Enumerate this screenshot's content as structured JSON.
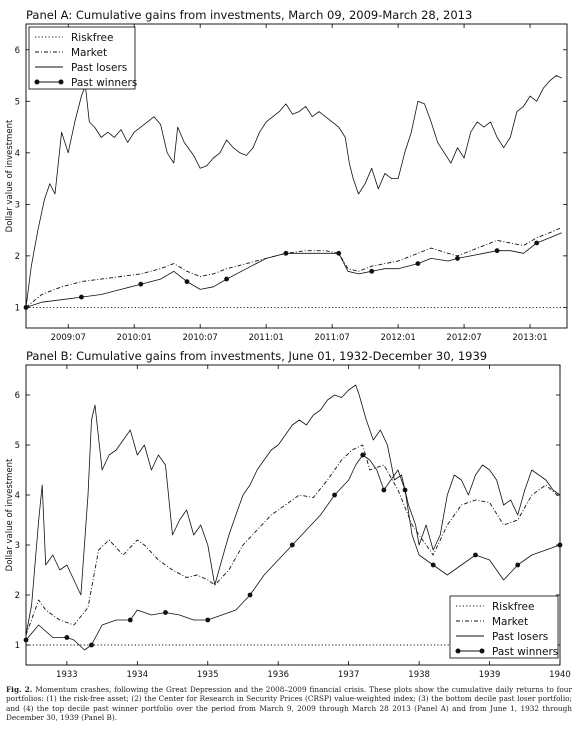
{
  "figure_caption": {
    "label": "Fig. 2.",
    "text": "Momentum crashes, following the Great Depression and the 2008–2009 financial crisis. These plots show the cumulative daily returns to four portfolios: (1) the risk-free asset; (2) the Center for Research in Security Prices (CRSP) value-weighted index; (3) the bottom decile past loser portfolio; and (4) the top decile past winner portfolio over the period from March 9, 2009 through March 28 2013 (Panel A) and from June 1, 1932 through December 30, 1939 (Panel B)."
  },
  "chart_data": [
    {
      "panel": "A",
      "type": "line",
      "title": "Panel A: Cumulative gains from investments, March 09, 2009-March 28, 2013",
      "ylabel": "Dollar value of investment",
      "xlabel": "",
      "xlim": [
        2009.18,
        2013.28
      ],
      "ylim": [
        0.6,
        6.5
      ],
      "yticks": [
        1,
        2,
        3,
        4,
        5,
        6
      ],
      "xticks": [
        {
          "value": 2009.5,
          "label": "2009:07"
        },
        {
          "value": 2010.0,
          "label": "2010:01"
        },
        {
          "value": 2010.5,
          "label": "2010:07"
        },
        {
          "value": 2011.0,
          "label": "2011:01"
        },
        {
          "value": 2011.5,
          "label": "2011:07"
        },
        {
          "value": 2012.0,
          "label": "2012:01"
        },
        {
          "value": 2012.5,
          "label": "2012:07"
        },
        {
          "value": 2013.0,
          "label": "2013:01"
        }
      ],
      "grid": false,
      "legend_position": "top-left",
      "series": [
        {
          "name": "Riskfree",
          "style": "dotted",
          "x": [
            2009.18,
            2013.24
          ],
          "y": [
            1.0,
            1.0
          ]
        },
        {
          "name": "Market",
          "style": "dashdot",
          "x": [
            2009.18,
            2009.3,
            2009.45,
            2009.6,
            2009.75,
            2009.9,
            2010.05,
            2010.2,
            2010.3,
            2010.4,
            2010.5,
            2010.6,
            2010.7,
            2010.85,
            2011.0,
            2011.15,
            2011.3,
            2011.45,
            2011.55,
            2011.62,
            2011.7,
            2011.8,
            2011.9,
            2012.0,
            2012.15,
            2012.25,
            2012.38,
            2012.45,
            2012.55,
            2012.65,
            2012.75,
            2012.85,
            2012.95,
            2013.05,
            2013.15,
            2013.24
          ],
          "y": [
            1.0,
            1.25,
            1.4,
            1.5,
            1.55,
            1.6,
            1.65,
            1.75,
            1.85,
            1.7,
            1.6,
            1.65,
            1.75,
            1.85,
            1.95,
            2.05,
            2.1,
            2.1,
            2.05,
            1.75,
            1.7,
            1.8,
            1.85,
            1.9,
            2.05,
            2.15,
            2.05,
            2.0,
            2.1,
            2.2,
            2.3,
            2.25,
            2.2,
            2.35,
            2.45,
            2.55
          ]
        },
        {
          "name": "Past losers",
          "style": "solid",
          "x": [
            2009.18,
            2009.22,
            2009.27,
            2009.32,
            2009.36,
            2009.4,
            2009.45,
            2009.5,
            2009.55,
            2009.6,
            2009.63,
            2009.66,
            2009.7,
            2009.75,
            2009.8,
            2009.85,
            2009.9,
            2009.95,
            2010.0,
            2010.05,
            2010.1,
            2010.15,
            2010.2,
            2010.25,
            2010.3,
            2010.33,
            2010.38,
            2010.45,
            2010.5,
            2010.55,
            2010.6,
            2010.65,
            2010.7,
            2010.75,
            2010.8,
            2010.85,
            2010.9,
            2010.95,
            2011.0,
            2011.05,
            2011.1,
            2011.15,
            2011.2,
            2011.25,
            2011.3,
            2011.35,
            2011.4,
            2011.45,
            2011.5,
            2011.55,
            2011.6,
            2011.63,
            2011.66,
            2011.7,
            2011.75,
            2011.8,
            2011.85,
            2011.9,
            2011.95,
            2012.0,
            2012.05,
            2012.1,
            2012.15,
            2012.2,
            2012.25,
            2012.3,
            2012.35,
            2012.4,
            2012.45,
            2012.5,
            2012.55,
            2012.6,
            2012.65,
            2012.7,
            2012.75,
            2012.8,
            2012.85,
            2012.9,
            2012.95,
            2013.0,
            2013.05,
            2013.1,
            2013.15,
            2013.2,
            2013.24
          ],
          "y": [
            1.0,
            1.8,
            2.5,
            3.1,
            3.4,
            3.2,
            4.4,
            4.0,
            4.6,
            5.1,
            5.3,
            4.6,
            4.5,
            4.3,
            4.4,
            4.3,
            4.45,
            4.2,
            4.4,
            4.5,
            4.6,
            4.7,
            4.55,
            4.0,
            3.8,
            4.5,
            4.2,
            3.95,
            3.7,
            3.75,
            3.9,
            4.0,
            4.25,
            4.1,
            4.0,
            3.95,
            4.1,
            4.4,
            4.6,
            4.7,
            4.8,
            4.95,
            4.75,
            4.8,
            4.9,
            4.7,
            4.8,
            4.7,
            4.6,
            4.5,
            4.3,
            3.8,
            3.5,
            3.2,
            3.4,
            3.7,
            3.3,
            3.6,
            3.5,
            3.5,
            4.0,
            4.4,
            5.0,
            4.95,
            4.6,
            4.2,
            4.0,
            3.8,
            4.1,
            3.9,
            4.4,
            4.6,
            4.5,
            4.6,
            4.3,
            4.1,
            4.3,
            4.8,
            4.9,
            5.1,
            5.0,
            5.25,
            5.4,
            5.5,
            5.45
          ]
        },
        {
          "name": "Past winners",
          "style": "solid-marker",
          "x": [
            2009.18,
            2009.3,
            2009.45,
            2009.6,
            2009.75,
            2009.9,
            2010.05,
            2010.2,
            2010.3,
            2010.4,
            2010.5,
            2010.6,
            2010.7,
            2010.85,
            2011.0,
            2011.15,
            2011.3,
            2011.45,
            2011.55,
            2011.62,
            2011.7,
            2011.8,
            2011.9,
            2012.0,
            2012.15,
            2012.25,
            2012.38,
            2012.45,
            2012.55,
            2012.65,
            2012.75,
            2012.85,
            2012.95,
            2013.05,
            2013.15,
            2013.24
          ],
          "y": [
            1.0,
            1.1,
            1.15,
            1.2,
            1.25,
            1.35,
            1.45,
            1.55,
            1.7,
            1.5,
            1.35,
            1.4,
            1.55,
            1.75,
            1.95,
            2.05,
            2.05,
            2.05,
            2.05,
            1.7,
            1.65,
            1.7,
            1.75,
            1.75,
            1.85,
            1.95,
            1.9,
            1.95,
            2.0,
            2.05,
            2.1,
            2.1,
            2.05,
            2.25,
            2.35,
            2.45
          ]
        }
      ]
    },
    {
      "panel": "B",
      "type": "line",
      "title": "Panel B: Cumulative gains from investments, June 01, 1932-December 30, 1939",
      "ylabel": "Dollar value of investment",
      "xlabel": "",
      "xlim": [
        1932.42,
        1940.0
      ],
      "ylim": [
        0.6,
        6.6
      ],
      "yticks": [
        1,
        2,
        3,
        4,
        5,
        6
      ],
      "xticks": [
        {
          "value": 1933,
          "label": "1933"
        },
        {
          "value": 1934,
          "label": "1934"
        },
        {
          "value": 1935,
          "label": "1935"
        },
        {
          "value": 1936,
          "label": "1936"
        },
        {
          "value": 1937,
          "label": "1937"
        },
        {
          "value": 1938,
          "label": "1938"
        },
        {
          "value": 1939,
          "label": "1939"
        },
        {
          "value": 1940,
          "label": "1940"
        }
      ],
      "grid": false,
      "legend_position": "bottom-right",
      "series": [
        {
          "name": "Riskfree",
          "style": "dotted",
          "x": [
            1932.42,
            1940.0
          ],
          "y": [
            1.0,
            1.0
          ]
        },
        {
          "name": "Market",
          "style": "dashdot",
          "x": [
            1932.42,
            1932.6,
            1932.7,
            1932.9,
            1933.1,
            1933.3,
            1933.45,
            1933.6,
            1933.8,
            1934.0,
            1934.1,
            1934.3,
            1934.5,
            1934.7,
            1934.85,
            1935.0,
            1935.1,
            1935.3,
            1935.5,
            1935.7,
            1935.9,
            1936.1,
            1936.3,
            1936.5,
            1936.7,
            1936.9,
            1937.05,
            1937.2,
            1937.3,
            1937.5,
            1937.7,
            1937.9,
            1938.0,
            1938.2,
            1938.4,
            1938.6,
            1938.8,
            1939.0,
            1939.2,
            1939.4,
            1939.6,
            1939.8,
            1940.0
          ],
          "y": [
            1.2,
            1.9,
            1.7,
            1.5,
            1.4,
            1.75,
            2.9,
            3.1,
            2.8,
            3.1,
            3.0,
            2.7,
            2.5,
            2.35,
            2.4,
            2.3,
            2.2,
            2.5,
            3.0,
            3.3,
            3.6,
            3.8,
            4.0,
            3.95,
            4.3,
            4.7,
            4.9,
            5.0,
            4.5,
            4.6,
            4.1,
            3.4,
            3.2,
            2.8,
            3.4,
            3.8,
            3.9,
            3.85,
            3.4,
            3.5,
            4.0,
            4.2,
            3.95
          ]
        },
        {
          "name": "Past losers",
          "style": "solid",
          "x": [
            1932.42,
            1932.5,
            1932.6,
            1932.65,
            1932.7,
            1932.8,
            1932.9,
            1933.0,
            1933.1,
            1933.2,
            1933.3,
            1933.35,
            1933.4,
            1933.5,
            1933.6,
            1933.7,
            1933.8,
            1933.9,
            1934.0,
            1934.1,
            1934.2,
            1934.3,
            1934.4,
            1934.5,
            1934.6,
            1934.7,
            1934.8,
            1934.9,
            1935.0,
            1935.1,
            1935.2,
            1935.3,
            1935.4,
            1935.5,
            1935.6,
            1935.7,
            1935.8,
            1935.9,
            1936.0,
            1936.1,
            1936.2,
            1936.3,
            1936.4,
            1936.5,
            1936.6,
            1936.7,
            1936.8,
            1936.9,
            1937.0,
            1937.1,
            1937.15,
            1937.25,
            1937.35,
            1937.45,
            1937.55,
            1937.65,
            1937.75,
            1937.85,
            1937.95,
            1938.0,
            1938.1,
            1938.2,
            1938.3,
            1938.4,
            1938.5,
            1938.6,
            1938.7,
            1938.8,
            1938.9,
            1939.0,
            1939.1,
            1939.2,
            1939.3,
            1939.4,
            1939.5,
            1939.6,
            1939.7,
            1939.8,
            1939.9,
            1940.0
          ],
          "y": [
            1.2,
            1.8,
            3.5,
            4.2,
            2.6,
            2.8,
            2.5,
            2.6,
            2.3,
            2.0,
            4.0,
            5.5,
            5.8,
            4.5,
            4.8,
            4.9,
            5.1,
            5.3,
            4.8,
            5.0,
            4.5,
            4.8,
            4.6,
            3.2,
            3.5,
            3.7,
            3.2,
            3.4,
            3.0,
            2.2,
            2.7,
            3.2,
            3.6,
            4.0,
            4.2,
            4.5,
            4.7,
            4.9,
            5.0,
            5.2,
            5.4,
            5.5,
            5.4,
            5.6,
            5.7,
            5.9,
            6.0,
            5.95,
            6.1,
            6.2,
            6.0,
            5.5,
            5.1,
            5.3,
            5.0,
            4.3,
            4.4,
            3.8,
            3.4,
            3.0,
            3.4,
            2.9,
            3.2,
            4.0,
            4.4,
            4.3,
            4.0,
            4.4,
            4.6,
            4.5,
            4.3,
            3.8,
            3.9,
            3.6,
            4.1,
            4.5,
            4.4,
            4.3,
            4.1,
            4.0
          ]
        },
        {
          "name": "Past winners",
          "style": "solid-marker",
          "x": [
            1932.42,
            1932.6,
            1932.8,
            1933.0,
            1933.1,
            1933.25,
            1933.35,
            1933.5,
            1933.7,
            1933.9,
            1934.0,
            1934.2,
            1934.4,
            1934.6,
            1934.8,
            1935.0,
            1935.2,
            1935.4,
            1935.6,
            1935.8,
            1936.0,
            1936.2,
            1936.4,
            1936.6,
            1936.8,
            1937.0,
            1937.1,
            1937.2,
            1937.3,
            1937.4,
            1937.5,
            1937.6,
            1937.7,
            1937.8,
            1937.9,
            1938.0,
            1938.2,
            1938.4,
            1938.6,
            1938.8,
            1939.0,
            1939.2,
            1939.4,
            1939.6,
            1939.8,
            1940.0
          ],
          "y": [
            1.1,
            1.4,
            1.15,
            1.15,
            1.1,
            0.9,
            1.0,
            1.4,
            1.5,
            1.5,
            1.7,
            1.6,
            1.65,
            1.6,
            1.5,
            1.5,
            1.6,
            1.7,
            2.0,
            2.4,
            2.7,
            3.0,
            3.3,
            3.6,
            4.0,
            4.3,
            4.6,
            4.8,
            4.7,
            4.5,
            4.1,
            4.3,
            4.5,
            4.1,
            3.2,
            2.8,
            2.6,
            2.4,
            2.6,
            2.8,
            2.7,
            2.3,
            2.6,
            2.8,
            2.9,
            3.0
          ]
        }
      ]
    }
  ]
}
